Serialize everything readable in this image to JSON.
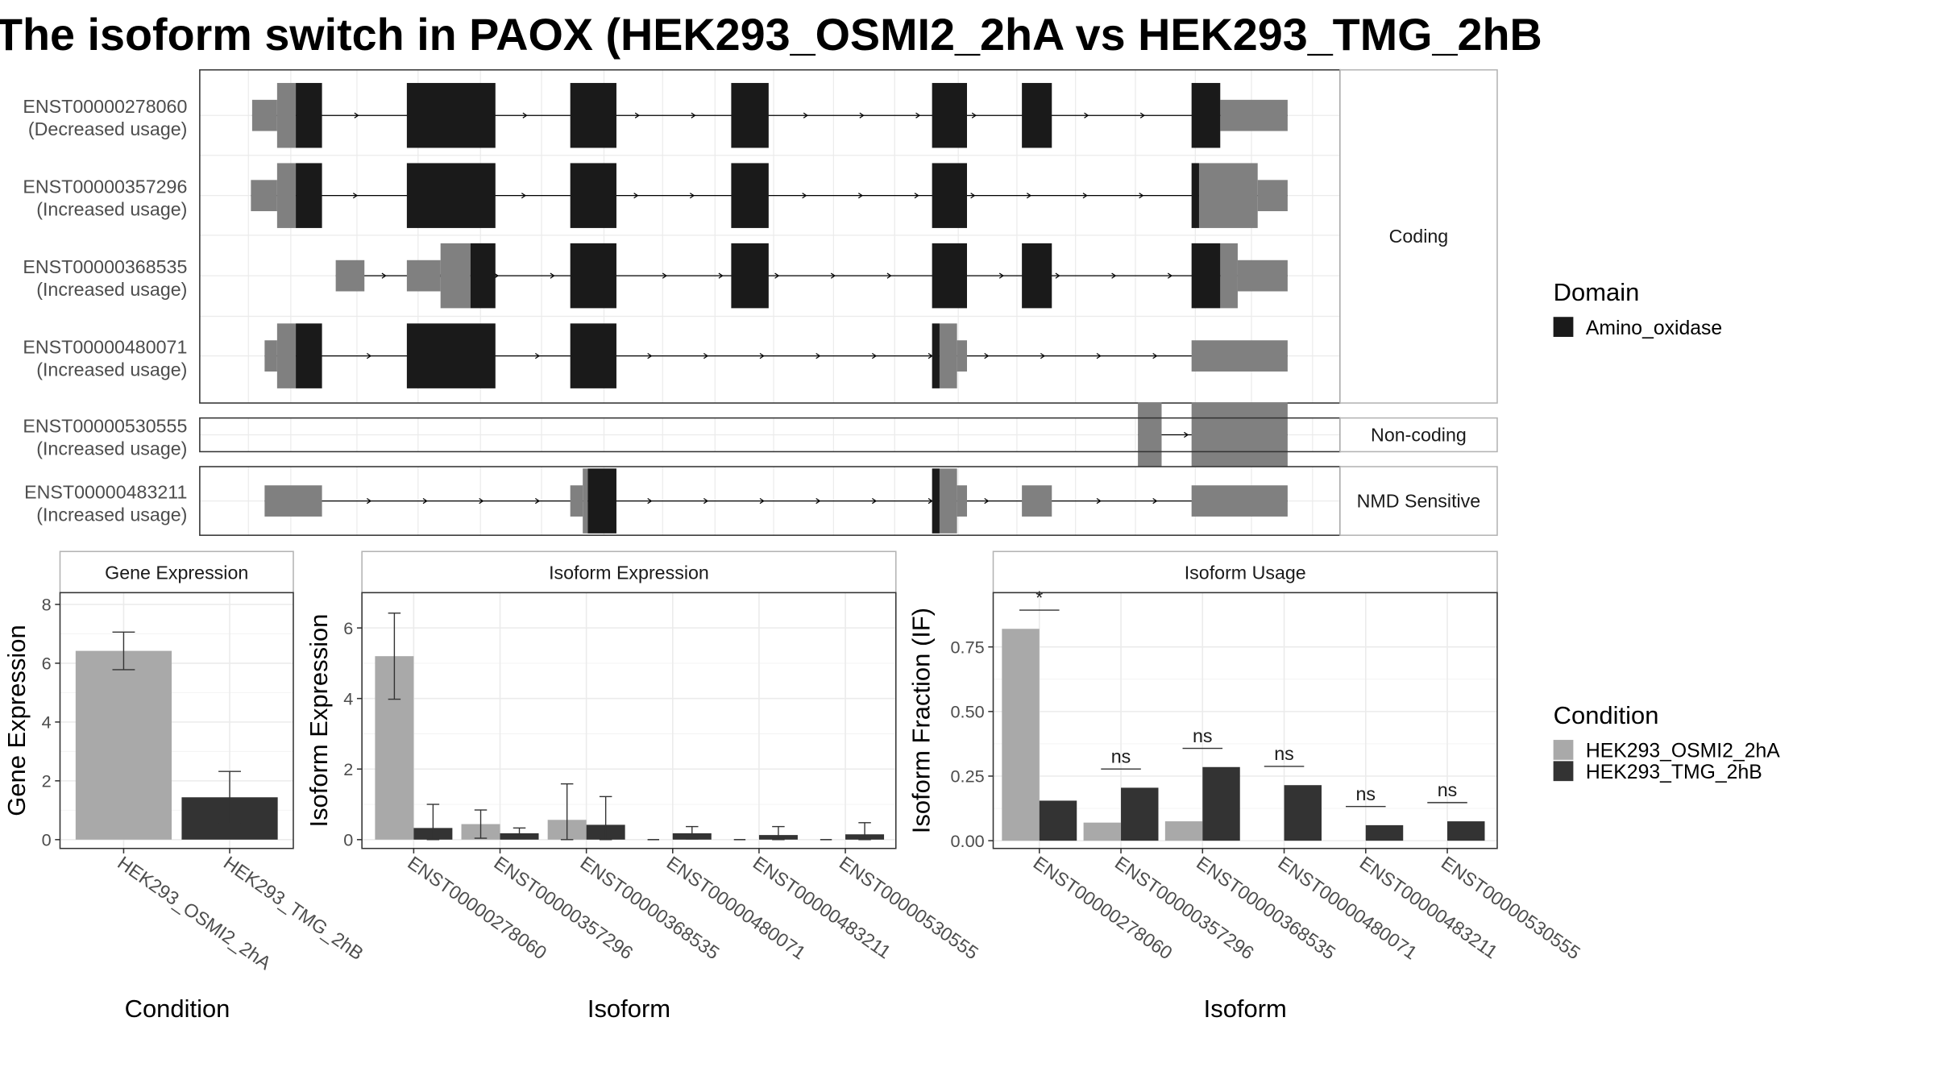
{
  "title": "The isoform switch in PAOX (HEK293_OSMI2_2hA vs HEK293_TMG_2hB",
  "colors": {
    "domain": "#1a1a1a",
    "utr": "#808080",
    "cond_a": "#a9a9a9",
    "cond_b": "#333333",
    "grid": "#ebebeb",
    "strip_bg": "#ffffff",
    "border": "#333333"
  },
  "transcript_panel": {
    "groups": [
      {
        "label": "Coding",
        "transcripts": [
          {
            "id": "ENST00000278060",
            "usage": "(Decreased usage)",
            "introns": [
              [
                202,
                1032
              ]
            ],
            "utr_thin": [
              [
                202,
                222
              ],
              [
                978,
                1032
              ]
            ],
            "utr_thick": [
              [
                222,
                237
              ]
            ],
            "domain": [
              [
                237,
                258
              ],
              [
                326,
                397
              ],
              [
                457,
                494
              ],
              [
                586,
                616
              ],
              [
                747,
                775
              ],
              [
                819,
                843
              ],
              [
                955,
                978
              ]
            ]
          },
          {
            "id": "ENST00000357296",
            "usage": "(Increased usage)",
            "introns": [
              [
                201,
                1032
              ]
            ],
            "utr_thin": [
              [
                201,
                222
              ],
              [
                1008,
                1032
              ]
            ],
            "utr_thick": [
              [
                222,
                237
              ],
              [
                961,
                1008
              ]
            ],
            "domain": [
              [
                237,
                258
              ],
              [
                326,
                397
              ],
              [
                457,
                494
              ],
              [
                586,
                616
              ],
              [
                747,
                775
              ],
              [
                955,
                961
              ]
            ]
          },
          {
            "id": "ENST00000368535",
            "usage": "(Increased usage)",
            "introns": [
              [
                269,
                1032
              ]
            ],
            "utr_thin": [
              [
                269,
                292
              ],
              [
                326,
                353
              ],
              [
                992,
                1032
              ]
            ],
            "utr_thick": [
              [
                353,
                377
              ],
              [
                978,
                992
              ]
            ],
            "domain": [
              [
                377,
                397
              ],
              [
                457,
                494
              ],
              [
                586,
                616
              ],
              [
                747,
                775
              ],
              [
                819,
                843
              ],
              [
                955,
                978
              ]
            ]
          },
          {
            "id": "ENST00000480071",
            "usage": "(Increased usage)",
            "introns": [
              [
                212,
                1032
              ]
            ],
            "utr_thin": [
              [
                212,
                222
              ],
              [
                767,
                775
              ],
              [
                955,
                1032
              ]
            ],
            "utr_thick": [
              [
                222,
                237
              ],
              [
                753,
                767
              ]
            ],
            "domain": [
              [
                237,
                258
              ],
              [
                326,
                397
              ],
              [
                457,
                494
              ],
              [
                747,
                753
              ]
            ]
          }
        ]
      },
      {
        "label": "Non-coding",
        "transcripts": [
          {
            "id": "ENST00000530555",
            "usage": "(Increased usage)",
            "introns": [
              [
                912,
                1032
              ]
            ],
            "utr_thin": [],
            "utr_thick": [
              [
                912,
                931
              ],
              [
                955,
                1032
              ]
            ],
            "domain": []
          }
        ]
      },
      {
        "label": "NMD Sensitive",
        "transcripts": [
          {
            "id": "ENST00000483211",
            "usage": "(Increased usage)",
            "introns": [
              [
                212,
                1032
              ]
            ],
            "utr_thin": [
              [
                212,
                258
              ],
              [
                457,
                467
              ],
              [
                767,
                775
              ],
              [
                819,
                843
              ],
              [
                955,
                1032
              ]
            ],
            "utr_thick": [
              [
                467,
                471
              ],
              [
                753,
                767
              ]
            ],
            "domain": [
              [
                471,
                494
              ],
              [
                747,
                753
              ]
            ]
          }
        ]
      }
    ]
  },
  "domain_legend": {
    "title": "Domain",
    "items": [
      "Amino_oxidase"
    ]
  },
  "condition_legend": {
    "title": "Condition",
    "items": [
      "HEK293_OSMI2_2hA",
      "HEK293_TMG_2hB"
    ]
  },
  "chart_data": [
    {
      "type": "bar",
      "title": "Gene Expression",
      "xlabel": "Condition",
      "ylabel": "Gene Expression",
      "ylim": [
        -0.3,
        8.4
      ],
      "yticks": [
        0,
        2,
        4,
        6,
        8
      ],
      "categories": [
        "HEK293_OSMI2_2hA",
        "HEK293_TMG_2hB"
      ],
      "series": [
        {
          "name": "HEK293_OSMI2_2hA",
          "values": [
            6.42,
            null
          ],
          "error": [
            [
              5.78,
              7.06
            ],
            null
          ]
        },
        {
          "name": "HEK293_TMG_2hB",
          "values": [
            null,
            1.44
          ],
          "error": [
            null,
            [
              0.55,
              2.32
            ]
          ]
        }
      ]
    },
    {
      "type": "bar",
      "title": "Isoform Expression",
      "xlabel": "Isoform",
      "ylabel": "Isoform Expression",
      "ylim": [
        -0.25,
        7.0
      ],
      "yticks": [
        0,
        2,
        4,
        6
      ],
      "categories": [
        "ENST00000278060",
        "ENST00000357296",
        "ENST00000368535",
        "ENST00000480071",
        "ENST00000483211",
        "ENST00000530555"
      ],
      "series": [
        {
          "name": "HEK293_OSMI2_2hA",
          "values": [
            5.2,
            0.44,
            0.56,
            0.0,
            0.0,
            0.0
          ],
          "error": [
            [
              3.98,
              6.42
            ],
            [
              0.04,
              0.84
            ],
            [
              0.0,
              1.58
            ],
            null,
            null,
            null
          ]
        },
        {
          "name": "HEK293_TMG_2hB",
          "values": [
            0.33,
            0.18,
            0.42,
            0.18,
            0.13,
            0.15
          ],
          "error": [
            [
              0.0,
              1.0
            ],
            [
              0.03,
              0.33
            ],
            [
              0.0,
              1.22
            ],
            [
              0.02,
              0.37
            ],
            [
              0.0,
              0.37
            ],
            [
              0.0,
              0.48
            ]
          ]
        }
      ]
    },
    {
      "type": "bar",
      "title": "Isoform Usage",
      "xlabel": "Isoform",
      "ylabel": "Isoform Fraction (IF)",
      "ylim": [
        -0.03,
        0.96
      ],
      "yticks": [
        0.0,
        0.25,
        0.5,
        0.75
      ],
      "ytick_labels": [
        "0.00",
        "0.25",
        "0.50",
        "0.75"
      ],
      "categories": [
        "ENST00000278060",
        "ENST00000357296",
        "ENST00000368535",
        "ENST00000480071",
        "ENST00000483211",
        "ENST00000530555"
      ],
      "series": [
        {
          "name": "HEK293_OSMI2_2hA",
          "values": [
            0.82,
            0.07,
            0.075,
            0.0,
            0.0,
            0.0
          ]
        },
        {
          "name": "HEK293_TMG_2hB",
          "values": [
            0.155,
            0.205,
            0.285,
            0.215,
            0.06,
            0.075
          ]
        }
      ],
      "significance": [
        "*",
        "ns",
        "ns",
        "ns",
        "ns",
        "ns"
      ]
    }
  ]
}
